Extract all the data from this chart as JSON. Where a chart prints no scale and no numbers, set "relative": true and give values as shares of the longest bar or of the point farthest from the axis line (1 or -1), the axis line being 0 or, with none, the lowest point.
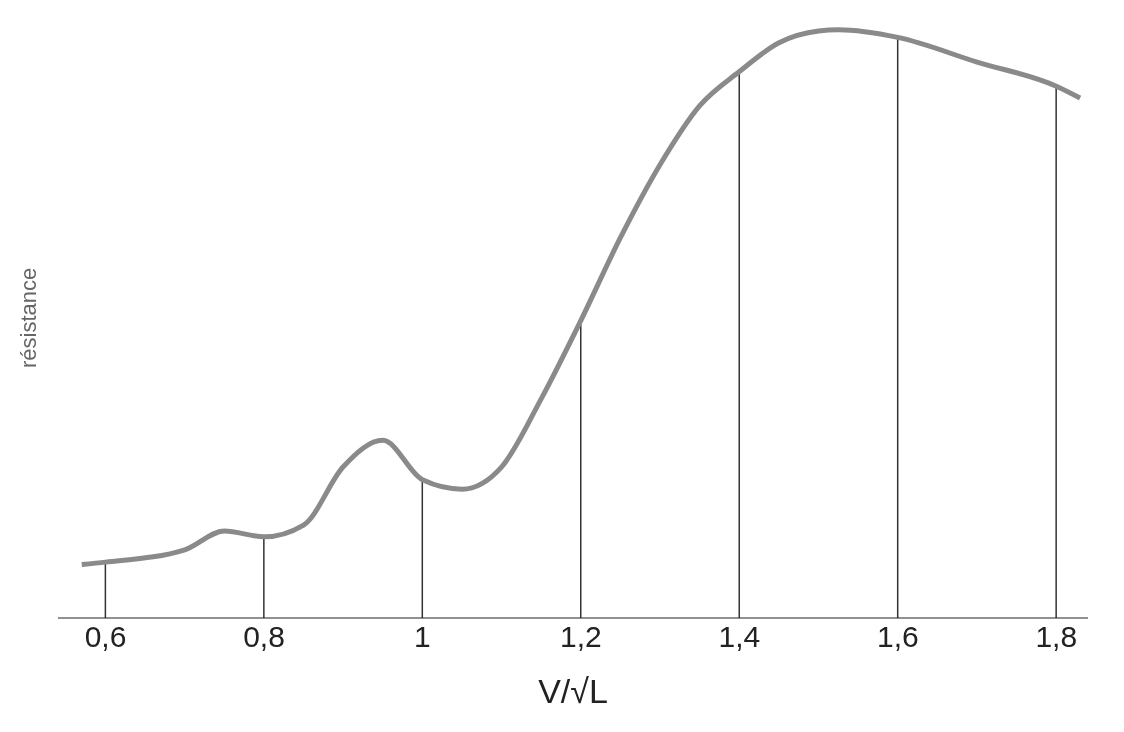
{
  "chart_data": {
    "type": "line",
    "relative": true,
    "xlabel": "V/√L",
    "ylabel": "résistance",
    "xlim": [
      0.54,
      1.84
    ],
    "xticks": [
      {
        "value": 0.6,
        "label": "0,6"
      },
      {
        "value": 0.8,
        "label": "0,8"
      },
      1,
      {
        "value": 1.2,
        "label": "1,2"
      },
      {
        "value": 1.4,
        "label": "1,4"
      },
      {
        "value": 1.6,
        "label": "1,6"
      },
      {
        "value": 1.8,
        "label": "1,8"
      }
    ],
    "series": [
      {
        "color": "#8a8a8a",
        "x": [
          0.57,
          0.6,
          0.7,
          0.75,
          0.8,
          0.85,
          0.9,
          0.95,
          1.0,
          1.05,
          1.1,
          1.15,
          1.2,
          1.25,
          1.3,
          1.35,
          1.4,
          1.45,
          1.5,
          1.525,
          1.6,
          1.7,
          1.8,
          1.83
        ],
        "values": [
          0.091,
          0.095,
          0.116,
          0.148,
          0.138,
          0.158,
          0.257,
          0.302,
          0.235,
          0.219,
          0.257,
          0.373,
          0.506,
          0.647,
          0.771,
          0.871,
          0.929,
          0.978,
          0.998,
          1,
          0.987,
          0.945,
          0.904,
          0.884
        ]
      },
      {
        "type": "bar",
        "color": "#333333",
        "x": [
          0.6,
          0.8,
          1.0,
          1.2,
          1.4,
          1.6,
          1.8
        ],
        "values": [
          0.095,
          0.138,
          0.235,
          0.506,
          0.929,
          0.987,
          0.904
        ]
      }
    ]
  }
}
